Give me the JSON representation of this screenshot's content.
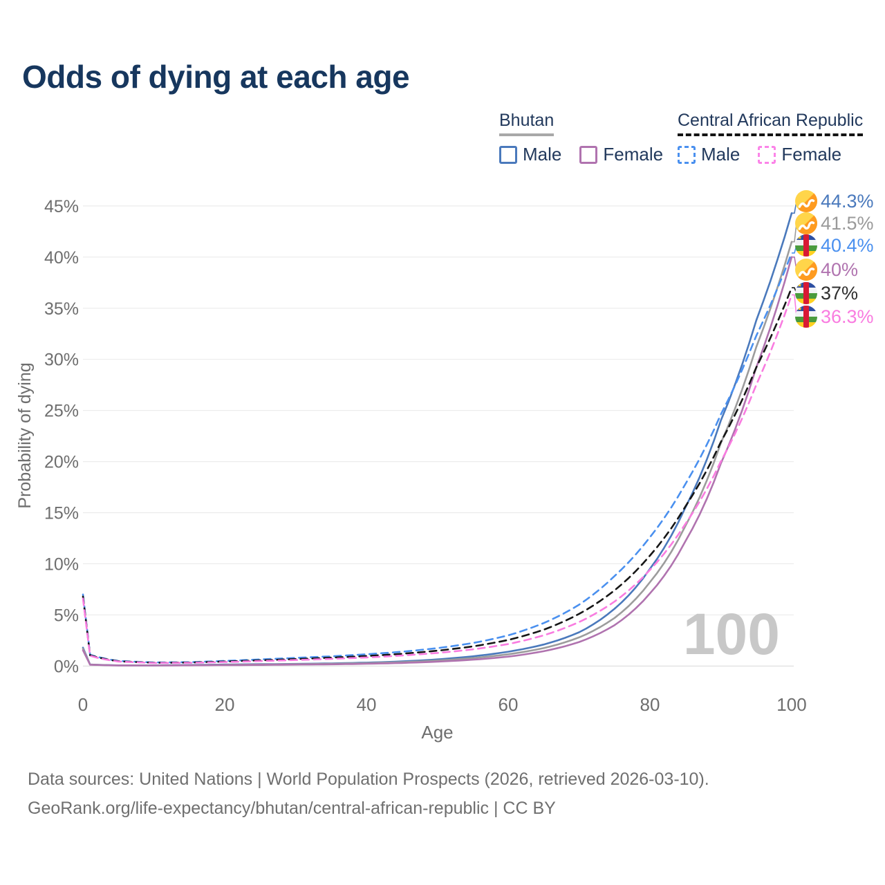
{
  "title": "Odds of dying at each age",
  "watermark": "100",
  "legend": {
    "groups": [
      {
        "label": "Bhutan",
        "underline_style": "solid",
        "underline_color": "#a8a8a8",
        "items": [
          {
            "label": "Male",
            "color": "#4a79bc",
            "dashed": false
          },
          {
            "label": "Female",
            "color": "#b073af",
            "dashed": false
          }
        ]
      },
      {
        "label": "Central African Republic",
        "underline_style": "dashed",
        "underline_color": "#141414",
        "items": [
          {
            "label": "Male",
            "color": "#4a90ef",
            "dashed": true
          },
          {
            "label": "Female",
            "color": "#fb84e8",
            "dashed": true
          }
        ]
      }
    ]
  },
  "footer": {
    "line1": "Data sources: United Nations | World Population Prospects (2026, retrieved 2026-03-10).",
    "line2": "GeoRank.org/life-expectancy/bhutan/central-african-republic | CC BY"
  },
  "chart_data": {
    "type": "line",
    "title": "Odds of dying at each age",
    "xlabel": "Age",
    "ylabel": "Probability of dying",
    "xlim": [
      0,
      100
    ],
    "ylim": [
      0,
      45
    ],
    "x_ticks": [
      0,
      20,
      40,
      60,
      80,
      100
    ],
    "y_ticks_percent": [
      0,
      5,
      10,
      15,
      20,
      25,
      30,
      35,
      40,
      45
    ],
    "y_tick_suffix": "%",
    "grid": "horizontal",
    "legend_position": "top-right",
    "unit": "percent probability of dying at each age",
    "ages": [
      0,
      1,
      5,
      10,
      15,
      20,
      25,
      30,
      35,
      40,
      45,
      50,
      55,
      60,
      65,
      70,
      75,
      80,
      85,
      90,
      95,
      100
    ],
    "series": [
      {
        "id": "bhutan-male",
        "name": "Bhutan Male",
        "country": "Bhutan",
        "sex": "Male",
        "style": "solid",
        "color": "#4a79bc",
        "end_label": "44.3%",
        "end_label_color": "#4a79bc",
        "flag": "bhutan",
        "values": [
          1.8,
          0.15,
          0.07,
          0.07,
          0.1,
          0.15,
          0.18,
          0.21,
          0.26,
          0.33,
          0.45,
          0.65,
          0.95,
          1.4,
          2.1,
          3.3,
          5.6,
          9.5,
          15.5,
          24.0,
          33.8,
          44.3
        ]
      },
      {
        "id": "bhutan-all",
        "name": "Bhutan (both sexes)",
        "country": "Bhutan",
        "sex": "All",
        "style": "solid",
        "color": "#9c9c9c",
        "end_label": "41.5%",
        "end_label_color": "#9a9a9a",
        "flag": "bhutan",
        "values": [
          1.7,
          0.14,
          0.06,
          0.06,
          0.08,
          0.12,
          0.15,
          0.18,
          0.22,
          0.28,
          0.38,
          0.54,
          0.78,
          1.15,
          1.75,
          2.8,
          4.7,
          8.2,
          13.7,
          21.8,
          31.2,
          41.5
        ]
      },
      {
        "id": "car-male",
        "name": "Central African Republic Male",
        "country": "Central African Republic",
        "sex": "Male",
        "style": "dashed",
        "color": "#4a90ef",
        "end_label": "40.4%",
        "end_label_color": "#4a90ef",
        "flag": "car",
        "values": [
          7.0,
          1.1,
          0.5,
          0.35,
          0.38,
          0.5,
          0.65,
          0.8,
          0.95,
          1.15,
          1.4,
          1.75,
          2.25,
          3.0,
          4.2,
          6.0,
          8.8,
          12.6,
          17.8,
          24.6,
          32.3,
          40.4
        ]
      },
      {
        "id": "bhutan-female",
        "name": "Bhutan Female",
        "country": "Bhutan",
        "sex": "Female",
        "style": "solid",
        "color": "#b073af",
        "end_label": "40%",
        "end_label_color": "#b073af",
        "flag": "bhutan",
        "values": [
          1.55,
          0.13,
          0.055,
          0.05,
          0.07,
          0.09,
          0.11,
          0.14,
          0.17,
          0.22,
          0.3,
          0.43,
          0.62,
          0.92,
          1.45,
          2.35,
          4.0,
          7.1,
          12.2,
          19.8,
          29.2,
          40.0
        ]
      },
      {
        "id": "car-all",
        "name": "Central African Republic (both sexes)",
        "country": "Central African Republic",
        "sex": "All",
        "style": "dashed",
        "color": "#161616",
        "end_label": "37%",
        "end_label_color": "#2e2e2e",
        "flag": "car",
        "values": [
          6.8,
          1.05,
          0.47,
          0.32,
          0.34,
          0.44,
          0.56,
          0.68,
          0.82,
          0.98,
          1.2,
          1.5,
          1.92,
          2.55,
          3.55,
          5.1,
          7.4,
          10.8,
          15.6,
          21.9,
          29.2,
          37.0
        ]
      },
      {
        "id": "car-female",
        "name": "Central African Republic Female",
        "country": "Central African Republic",
        "sex": "Female",
        "style": "dashed",
        "color": "#f97ce0",
        "end_label": "36.3%",
        "end_label_color": "#f97ce0",
        "flag": "car",
        "values": [
          6.6,
          1.0,
          0.44,
          0.3,
          0.31,
          0.39,
          0.49,
          0.59,
          0.7,
          0.84,
          1.03,
          1.28,
          1.63,
          2.15,
          3.0,
          4.3,
          6.3,
          9.4,
          13.9,
          20.0,
          27.5,
          36.3
        ]
      }
    ]
  }
}
